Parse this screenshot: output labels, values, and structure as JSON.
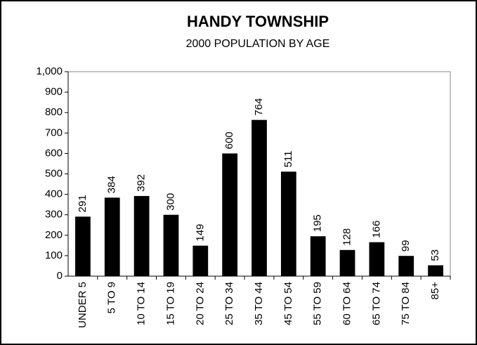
{
  "chart_data": {
    "type": "bar",
    "title": "HANDY TOWNSHIP",
    "subtitle": "2000 POPULATION BY AGE",
    "categories": [
      "UNDER 5",
      "5 TO 9",
      "10 TO 14",
      "15 TO 19",
      "20 TO 24",
      "25 TO 34",
      "35 TO 44",
      "45 TO 54",
      "55 TO 59",
      "60 TO 64",
      "65 TO 74",
      "75 TO 84",
      "85+"
    ],
    "values": [
      291,
      384,
      392,
      300,
      149,
      600,
      764,
      511,
      195,
      128,
      166,
      99,
      53
    ],
    "color": "#000000",
    "ylim": [
      0,
      1000
    ],
    "yticks": [
      0,
      100,
      200,
      300,
      400,
      500,
      600,
      700,
      800,
      900,
      {
        "value": 1000,
        "label": "1,000"
      }
    ],
    "grid": false
  }
}
